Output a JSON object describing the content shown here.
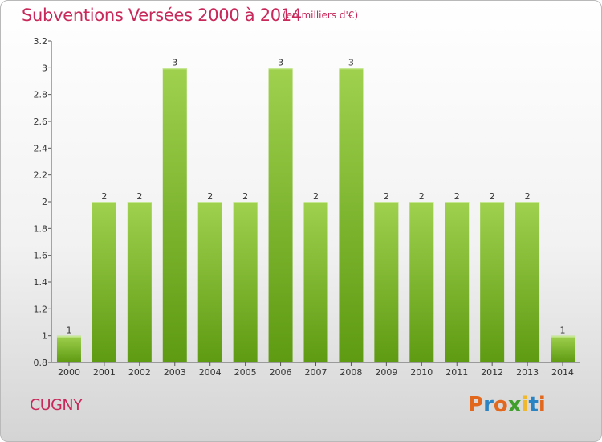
{
  "header": {
    "title": "Subventions Versées 2000 à 2014",
    "subtitle": "(en milliers d'€)"
  },
  "footer": {
    "commune": "CUGNY",
    "logo_text": "Proxiti"
  },
  "colors": {
    "title": "#c8285a",
    "bar_top": "#9fd14e",
    "bar_bottom": "#5e9a12",
    "logo_letters": [
      "#e2681d",
      "#2a84c4",
      "#e2681d",
      "#3f9e2c",
      "#f0b82a",
      "#2a84c4",
      "#e2681d"
    ]
  },
  "chart_data": {
    "type": "bar",
    "title": "Subventions Versées 2000 à 2014",
    "subtitle": "(en milliers d'€)",
    "categories": [
      "2000",
      "2001",
      "2002",
      "2003",
      "2004",
      "2005",
      "2006",
      "2007",
      "2008",
      "2009",
      "2010",
      "2011",
      "2012",
      "2013",
      "2014"
    ],
    "values": [
      1,
      2,
      2,
      3,
      2,
      2,
      3,
      2,
      3,
      2,
      2,
      2,
      2,
      2,
      1
    ],
    "data_labels": [
      "1",
      "2",
      "2",
      "3",
      "2",
      "2",
      "3",
      "2",
      "3",
      "2",
      "2",
      "2",
      "2",
      "2",
      "1"
    ],
    "ylim": [
      0.8,
      3.2
    ],
    "yticks": [
      0.8,
      1,
      1.2,
      1.4,
      1.6,
      1.8,
      2,
      2.2,
      2.4,
      2.6,
      2.8,
      3,
      3.2
    ],
    "ytick_labels": [
      "0.8",
      "1",
      "1.2",
      "1.4",
      "1.6",
      "1.8",
      "2",
      "2.2",
      "2.4",
      "2.6",
      "2.8",
      "3",
      "3.2"
    ],
    "grid": false,
    "legend": "none"
  }
}
